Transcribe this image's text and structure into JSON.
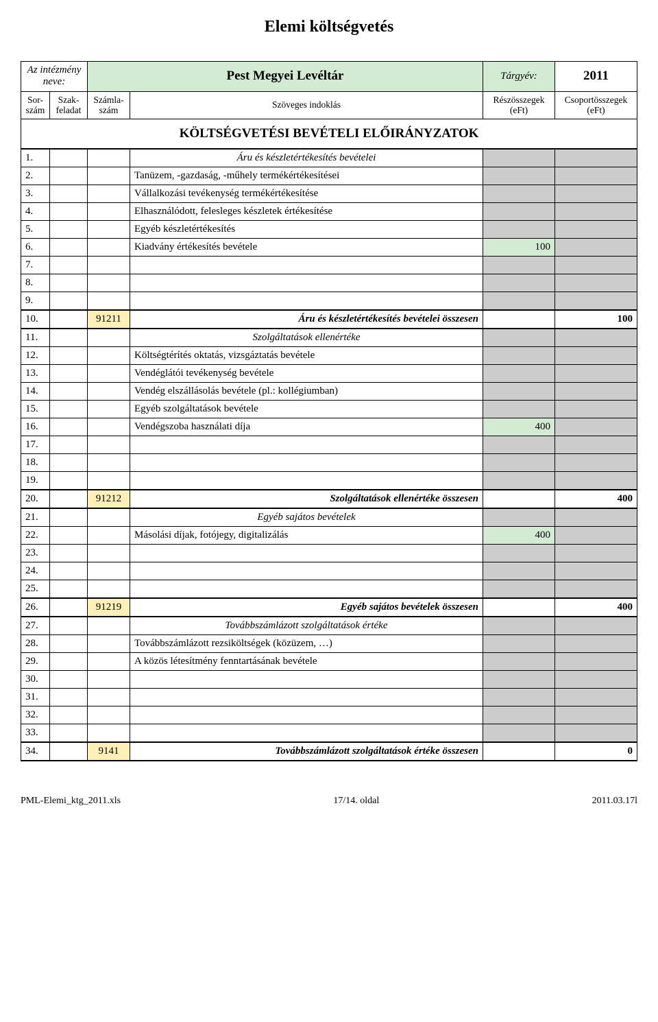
{
  "title": "Elemi költségvetés",
  "header": {
    "inst_label_line1": "Az intézmény",
    "inst_label_line2": "neve:",
    "inst_name": "Pest Megyei Levéltár",
    "year_label": "Tárgyév:",
    "year": "2011",
    "cols": {
      "c1_l1": "Sor-",
      "c1_l2": "szám",
      "c2_l1": "Szak-",
      "c2_l2": "feladat",
      "c3_l1": "Számla-",
      "c3_l2": "szám",
      "c4": "Szöveges indoklás",
      "c5_l1": "Részösszegek",
      "c5_l2": "(eFt)",
      "c6_l1": "Csoportösszegek",
      "c6_l2": "(eFt)"
    }
  },
  "section_title": "KÖLTSÉGVETÉSI BEVÉTELI ELŐIRÁNYZATOK",
  "rows": [
    {
      "n": "1.",
      "acct": "",
      "desc": "Áru és készletértékesítés bevételei",
      "style": "desc-i",
      "val": "",
      "grp": "",
      "grpstyle": "grp",
      "thick": "top"
    },
    {
      "n": "2.",
      "acct": "",
      "desc": "Tanüzem, -gazdaság, -műhely termékértékesítései",
      "style": "desc",
      "val": "",
      "grp": "",
      "grpstyle": "grp"
    },
    {
      "n": "3.",
      "acct": "",
      "desc": "Vállalkozási tevékenység termékértékesítése",
      "style": "desc",
      "val": "",
      "grp": "",
      "grpstyle": "grp"
    },
    {
      "n": "4.",
      "acct": "",
      "desc": "Elhasználódott, felesleges készletek értékesítése",
      "style": "desc",
      "val": "",
      "grp": "",
      "grpstyle": "grp"
    },
    {
      "n": "5.",
      "acct": "",
      "desc": "Egyéb készletértékesítés",
      "style": "desc",
      "val": "",
      "grp": "",
      "grpstyle": "grp"
    },
    {
      "n": "6.",
      "acct": "",
      "desc": "Kiadvány értékesítés bevétele",
      "style": "desc",
      "val": "100",
      "valstyle": "val-green",
      "grp": "",
      "grpstyle": "grp"
    },
    {
      "n": "7.",
      "acct": "",
      "desc": "",
      "style": "desc",
      "val": "",
      "grp": "",
      "grpstyle": "grp"
    },
    {
      "n": "8.",
      "acct": "",
      "desc": "",
      "style": "desc",
      "val": "",
      "grp": "",
      "grpstyle": "grp"
    },
    {
      "n": "9.",
      "acct": "",
      "desc": "",
      "style": "desc",
      "val": "",
      "grp": "",
      "grpstyle": "grp"
    },
    {
      "n": "10.",
      "acct": "91211",
      "desc": "Áru és készletértékesítés bevételei összesen",
      "style": "desc-bi",
      "val": "",
      "grp": "100",
      "grpstyle": "grp-b",
      "thick": "both"
    },
    {
      "n": "11.",
      "acct": "",
      "desc": "Szolgáltatások ellenértéke",
      "style": "desc-i",
      "val": "",
      "grp": "",
      "grpstyle": "grp"
    },
    {
      "n": "12.",
      "acct": "",
      "desc": "Költségtérítés oktatás, vizsgáztatás bevétele",
      "style": "desc",
      "val": "",
      "grp": "",
      "grpstyle": "grp"
    },
    {
      "n": "13.",
      "acct": "",
      "desc": "Vendéglátói tevékenység bevétele",
      "style": "desc",
      "val": "",
      "grp": "",
      "grpstyle": "grp"
    },
    {
      "n": "14.",
      "acct": "",
      "desc": "Vendég elszállásolás bevétele (pl.: kollégiumban)",
      "style": "desc",
      "val": "",
      "grp": "",
      "grpstyle": "grp"
    },
    {
      "n": "15.",
      "acct": "",
      "desc": "Egyéb szolgáltatások bevétele",
      "style": "desc",
      "val": "",
      "grp": "",
      "grpstyle": "grp"
    },
    {
      "n": "16.",
      "acct": "",
      "desc": "Vendégszoba használati díja",
      "style": "desc",
      "val": "400",
      "valstyle": "val-green",
      "grp": "",
      "grpstyle": "grp"
    },
    {
      "n": "17.",
      "acct": "",
      "desc": "",
      "style": "desc",
      "val": "",
      "grp": "",
      "grpstyle": "grp"
    },
    {
      "n": "18.",
      "acct": "",
      "desc": "",
      "style": "desc",
      "val": "",
      "grp": "",
      "grpstyle": "grp"
    },
    {
      "n": "19.",
      "acct": "",
      "desc": "",
      "style": "desc",
      "val": "",
      "grp": "",
      "grpstyle": "grp"
    },
    {
      "n": "20.",
      "acct": "91212",
      "desc": "Szolgáltatások ellenértéke összesen",
      "style": "desc-bi",
      "val": "",
      "grp": "400",
      "grpstyle": "grp-b",
      "thick": "both"
    },
    {
      "n": "21.",
      "acct": "",
      "desc": "Egyéb sajátos bevételek",
      "style": "desc-i",
      "val": "",
      "grp": "",
      "grpstyle": "grp"
    },
    {
      "n": "22.",
      "acct": "",
      "desc": "Másolási díjak, fotójegy, digitalizálás",
      "style": "desc",
      "val": "400",
      "valstyle": "val-green",
      "grp": "",
      "grpstyle": "grp"
    },
    {
      "n": "23.",
      "acct": "",
      "desc": "",
      "style": "desc",
      "val": "",
      "grp": "",
      "grpstyle": "grp"
    },
    {
      "n": "24.",
      "acct": "",
      "desc": "",
      "style": "desc",
      "val": "",
      "grp": "",
      "grpstyle": "grp"
    },
    {
      "n": "25.",
      "acct": "",
      "desc": "",
      "style": "desc",
      "val": "",
      "grp": "",
      "grpstyle": "grp"
    },
    {
      "n": "26.",
      "acct": "91219",
      "desc": "Egyéb sajátos bevételek összesen",
      "style": "desc-bi",
      "val": "",
      "grp": "400",
      "grpstyle": "grp-b",
      "thick": "both"
    },
    {
      "n": "27.",
      "acct": "",
      "desc": "Továbbszámlázott szolgáltatások értéke",
      "style": "desc-i",
      "val": "",
      "grp": "",
      "grpstyle": "grp"
    },
    {
      "n": "28.",
      "acct": "",
      "desc": "Továbbszámlázott rezsiköltségek (közüzem, …)",
      "style": "desc",
      "val": "",
      "grp": "",
      "grpstyle": "grp"
    },
    {
      "n": "29.",
      "acct": "",
      "desc": "A közös létesítmény fenntartásának bevétele",
      "style": "desc",
      "val": "",
      "grp": "",
      "grpstyle": "grp"
    },
    {
      "n": "30.",
      "acct": "",
      "desc": "",
      "style": "desc",
      "val": "",
      "grp": "",
      "grpstyle": "grp"
    },
    {
      "n": "31.",
      "acct": "",
      "desc": "",
      "style": "desc",
      "val": "",
      "grp": "",
      "grpstyle": "grp"
    },
    {
      "n": "32.",
      "acct": "",
      "desc": "",
      "style": "desc",
      "val": "",
      "grp": "",
      "grpstyle": "grp"
    },
    {
      "n": "33.",
      "acct": "",
      "desc": "",
      "style": "desc",
      "val": "",
      "grp": "",
      "grpstyle": "grp"
    },
    {
      "n": "34.",
      "acct": "9141",
      "desc": "Továbbszámlázott szolgáltatások értéke összesen",
      "style": "desc-bi",
      "val": "",
      "grp": "0",
      "grpstyle": "grp-b",
      "thick": "both"
    }
  ],
  "footer": {
    "left": "PML-Elemi_ktg_2011.xls",
    "center": "17/14. oldal",
    "right": "2011.03.17l"
  },
  "colors": {
    "header_green": "#d3ead3",
    "val_green": "#d3ead3",
    "val_grey": "#cccccc",
    "acct_yellow": "#fff0b8"
  }
}
